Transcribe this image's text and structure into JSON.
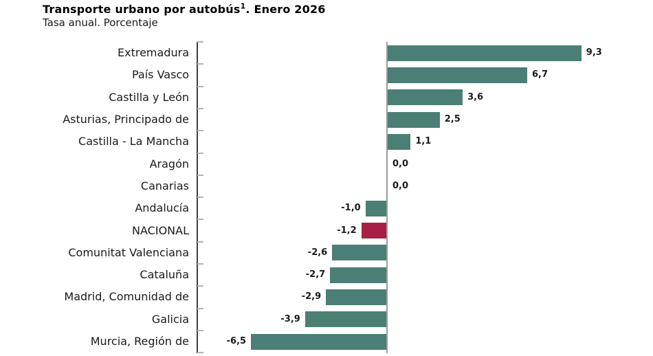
{
  "header": {
    "title_main": "Transporte urbano por autobús",
    "title_sup": "1",
    "title_rest": ". Enero 2026",
    "subtitle": "Tasa anual. Porcentaje"
  },
  "chart_data": {
    "type": "bar",
    "orientation": "horizontal",
    "title": "Transporte urbano por autobús(1). Enero 2026",
    "subtitle": "Tasa anual. Porcentaje",
    "unit": "percent",
    "decimal_style": "comma",
    "categories": [
      "Extremadura",
      "País Vasco",
      "Castilla y León",
      "Asturias, Principado de",
      "Castilla - La Mancha",
      "Aragón",
      "Canarias",
      "Andalucía",
      "NACIONAL",
      "Comunitat Valenciana",
      "Cataluña",
      "Madrid, Comunidad de",
      "Galicia",
      "Murcia, Región de"
    ],
    "values": [
      9.3,
      6.7,
      3.6,
      2.5,
      1.1,
      0.0,
      0.0,
      -1.0,
      -1.2,
      -2.6,
      -2.7,
      -2.9,
      -3.9,
      -6.5
    ],
    "value_labels": [
      "9,3",
      "6,7",
      "3,6",
      "2,5",
      "1,1",
      "0,0",
      "0,0",
      "-1,0",
      "-1,2",
      "-2,6",
      "-2,7",
      "-2,9",
      "-3,9",
      "-6,5"
    ],
    "highlight_category": "NACIONAL",
    "colors": {
      "bar": "#4B7F75",
      "highlight": "#A91E44",
      "axis": "#3c3c3c",
      "tick": "#b4b4b4",
      "zero_line": "#9a9a9a",
      "text": "#1a1a1a"
    },
    "xlim": [
      -6.5,
      9.3
    ],
    "grid": false,
    "legend": false
  }
}
